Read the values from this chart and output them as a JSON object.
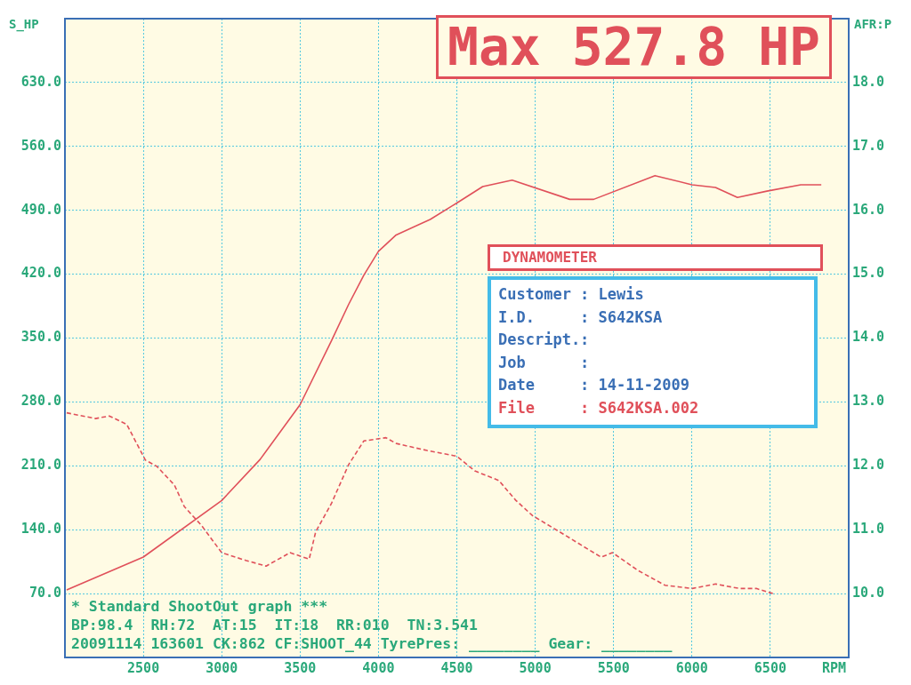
{
  "chart_data": {
    "type": "line",
    "xlabel": "RPM",
    "ylabel": "S_HP",
    "y2label": "AFR:P",
    "xlim": [
      2000,
      7000
    ],
    "xticks": [
      2500,
      3000,
      3500,
      4000,
      4500,
      5000,
      5500,
      6000,
      6500
    ],
    "ylim": [
      0,
      700
    ],
    "yticks": [
      {
        "value": 70,
        "label": "70.0"
      },
      {
        "value": 140,
        "label": "140.0"
      },
      {
        "value": 210,
        "label": "210.0"
      },
      {
        "value": 280,
        "label": "280.0"
      },
      {
        "value": 350,
        "label": "350.0"
      },
      {
        "value": 420,
        "label": "420.0"
      },
      {
        "value": 490,
        "label": "490.0"
      },
      {
        "value": 560,
        "label": "560.0"
      },
      {
        "value": 630,
        "label": "630.0"
      }
    ],
    "y2lim": [
      9,
      19
    ],
    "y2ticks": [
      {
        "value": 10,
        "label": "10.0"
      },
      {
        "value": 11,
        "label": "11.0"
      },
      {
        "value": 12,
        "label": "12.0"
      },
      {
        "value": 13,
        "label": "13.0"
      },
      {
        "value": 14,
        "label": "14.0"
      },
      {
        "value": 15,
        "label": "15.0"
      },
      {
        "value": 16,
        "label": "16.0"
      },
      {
        "value": 17,
        "label": "17.0"
      },
      {
        "value": 18,
        "label": "18.0"
      }
    ],
    "grid": true,
    "marker": "none",
    "series": [
      {
        "color": "#e0505a",
        "line_style": "solid",
        "x": [
          2011,
          2500,
          3000,
          3245,
          3500,
          3700,
          3810,
          3907,
          4000,
          4113,
          4330,
          4500,
          4665,
          4853,
          5220,
          5373,
          5764,
          6000,
          6150,
          6290,
          6478,
          6694,
          6825
        ],
        "values": [
          74,
          110,
          172,
          217,
          277,
          347,
          387,
          419,
          445,
          463,
          480,
          498,
          516,
          523,
          502,
          502,
          528,
          518,
          515,
          504,
          511,
          518,
          518
        ]
      },
      {
        "color": "#e0505a",
        "line_style": "dashed",
        "axis": "y2",
        "x": [
          2011,
          2195,
          2283,
          2394,
          2513,
          2587,
          2698,
          2762,
          2870,
          3000,
          3153,
          3283,
          3436,
          3558,
          3600,
          3700,
          3810,
          3907,
          4048,
          4113,
          4310,
          4500,
          4615,
          4768,
          4876,
          4983,
          5180,
          5420,
          5493,
          5657,
          5828,
          6002,
          6150,
          6302,
          6410,
          6516
        ],
        "values": [
          12.83,
          12.74,
          12.78,
          12.65,
          12.09,
          11.99,
          11.7,
          11.36,
          11.07,
          10.64,
          10.52,
          10.43,
          10.64,
          10.54,
          10.97,
          11.41,
          12.02,
          12.39,
          12.44,
          12.35,
          12.24,
          12.15,
          11.92,
          11.77,
          11.46,
          11.22,
          10.93,
          10.57,
          10.64,
          10.36,
          10.13,
          10.08,
          10.15,
          10.08,
          10.08,
          10.0
        ]
      }
    ],
    "annotations": [
      "Max 527.8 HP",
      "DYNAMOMETER",
      "Customer : Lewis",
      "I.D.     : S642KSA",
      "Descript.:",
      "Job      :",
      "Date     : 14-11-2009",
      "File     : S642KSA.002",
      "* Standard ShootOut graph ***",
      "BP:98.4  RH:72  AT:15  IT:18  RR:010  TN:3.541",
      "20091114 163601 CK:862 CF:SHOOT_44 TyrePres: ________ Gear: ________"
    ]
  }
}
